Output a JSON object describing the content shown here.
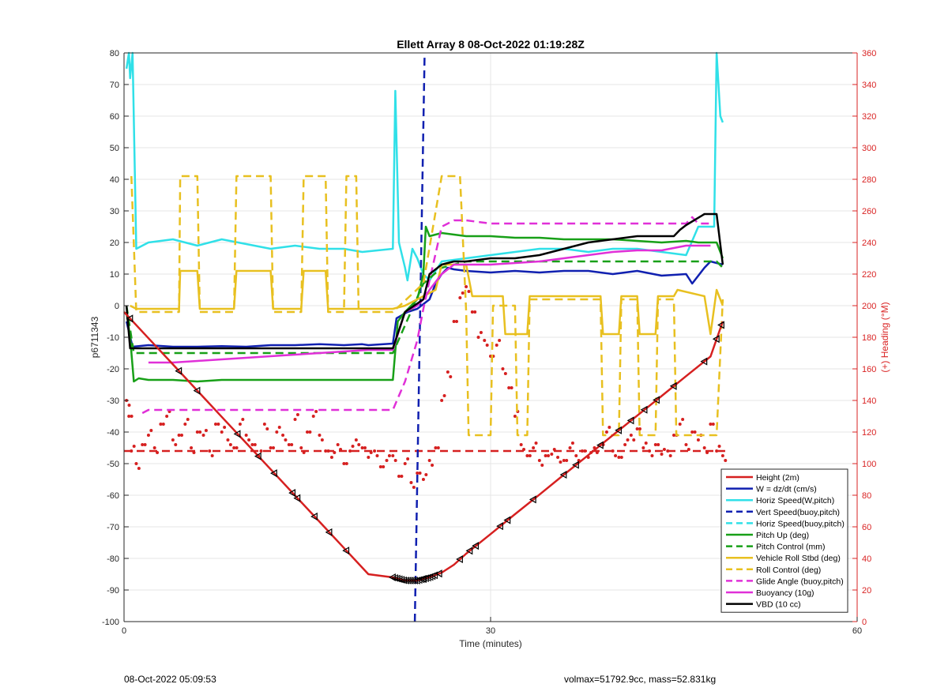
{
  "footer": {
    "left": "08-Oct-2022 05:09:53",
    "right": "volmax=51792.9cc, mass=52.831kg"
  },
  "chart_data": {
    "type": "line",
    "title": "Ellett Array 8 08-Oct-2022 01:19:28Z",
    "xlabel": "Time (minutes)",
    "ylabel": "p6711343",
    "y2label": "(+) Heading (°M)",
    "xlim": [
      0,
      60
    ],
    "ylim": [
      -100,
      80
    ],
    "y2lim": [
      0,
      360
    ],
    "xticks": [
      0,
      30,
      60
    ],
    "yticks": [
      -100,
      -90,
      -80,
      -70,
      -60,
      -50,
      -40,
      -30,
      -20,
      -10,
      0,
      10,
      20,
      30,
      40,
      50,
      60,
      70,
      80
    ],
    "y2ticks": [
      0,
      20,
      40,
      60,
      80,
      100,
      120,
      140,
      160,
      180,
      200,
      220,
      240,
      260,
      280,
      300,
      320,
      340,
      360
    ],
    "grid": true,
    "legend_position": "bottom-right",
    "colors": {
      "red": "#d62020",
      "blue": "#1020b0",
      "cyan": "#30e0e8",
      "green": "#18a018",
      "yellow": "#e8c020",
      "magenta": "#e030d8",
      "black": "#000000",
      "heading": "#d62020"
    },
    "series": [
      {
        "name": "Height (2m)",
        "color": "red",
        "dash": "solid",
        "axis": "left",
        "x": [
          0,
          2,
          4,
          6,
          8,
          10,
          12,
          14,
          16,
          18,
          20,
          22,
          23,
          24,
          25,
          26,
          27,
          28,
          30,
          32,
          34,
          36,
          38,
          40,
          42,
          44,
          46,
          48,
          49
        ],
        "y": [
          -2,
          -10.3,
          -18.6,
          -26.9,
          -35.2,
          -43.5,
          -51.8,
          -60.1,
          -68.4,
          -76.7,
          -85,
          -86,
          -87,
          -87,
          -86,
          -84.5,
          -82,
          -78.5,
          -72.3,
          -66,
          -59.8,
          -53.5,
          -47.3,
          -41,
          -34.8,
          -28.6,
          -22.3,
          -16.1,
          -5
        ],
        "markers_at": [
          0.5,
          4.5,
          6,
          9.3,
          11,
          12.3,
          13.8,
          14.2,
          15.6,
          16.8,
          18.2,
          22,
          24.5,
          25.8,
          27.5,
          28.3,
          28.8,
          30.8,
          31.4,
          33.5,
          36,
          37,
          39,
          40.5,
          41.5,
          42.6,
          43.6,
          45,
          47.5,
          48.5,
          48.9
        ]
      },
      {
        "name": "W = dz/dt (cm/s)",
        "color": "blue",
        "dash": "solid",
        "axis": "left",
        "x": [
          0.2,
          0.7,
          2,
          4,
          6,
          8,
          10,
          12,
          14,
          16,
          18,
          19.5,
          20,
          22,
          22.3,
          23.2,
          24,
          25,
          25.5,
          26,
          26.5,
          27,
          28,
          30,
          32,
          34,
          36,
          38,
          40,
          42,
          44,
          46,
          46.5,
          47.5,
          48,
          49
        ],
        "y": [
          -5,
          -13,
          -12.5,
          -13,
          -13,
          -12.8,
          -13,
          -12.5,
          -12.5,
          -12.2,
          -12.5,
          -12.2,
          -12.5,
          -12,
          -4,
          -2,
          -1,
          2,
          7,
          10,
          12,
          11.5,
          11,
          10.5,
          11,
          10.5,
          11,
          11,
          10,
          11,
          9.5,
          10,
          7,
          12,
          14,
          13
        ]
      },
      {
        "name": "Horiz Speed(W,pitch)",
        "color": "cyan",
        "dash": "solid",
        "axis": "left",
        "x": [
          0.2,
          0.4,
          0.5,
          0.7,
          1,
          2,
          4,
          6,
          8,
          10,
          12,
          14,
          16,
          18,
          19.5,
          22,
          22.2,
          22.5,
          23,
          23.2,
          23.6,
          24,
          24.5,
          25,
          26,
          28,
          30,
          32,
          34,
          36,
          38,
          40,
          42,
          44,
          46,
          47,
          48.3,
          48.5,
          48.8,
          49
        ],
        "y": [
          75,
          80,
          72,
          80,
          18,
          20,
          21,
          19,
          21,
          19.5,
          18,
          19,
          18,
          18,
          17,
          18,
          68,
          20,
          12,
          8,
          18,
          15,
          10,
          8,
          14,
          15,
          16,
          17,
          18,
          18,
          17,
          18,
          18,
          17,
          16,
          25,
          25,
          80,
          60,
          58
        ]
      },
      {
        "name": "Vert Speed(buoy,pitch)",
        "color": "blue",
        "dash": "dash",
        "axis": "left",
        "x": [
          23.8,
          24.6
        ],
        "y": [
          -100,
          80
        ]
      },
      {
        "name": "Horiz Speed(buoy,pitch)",
        "color": "cyan",
        "dash": "dash",
        "axis": "left",
        "x": [],
        "y": []
      },
      {
        "name": "Pitch Up (deg)",
        "color": "green",
        "dash": "solid",
        "axis": "left",
        "x": [
          0.2,
          0.5,
          0.8,
          1.2,
          2,
          4,
          6,
          8,
          10,
          12,
          14,
          16,
          18,
          19.5,
          22,
          22.4,
          23,
          24,
          24.5,
          24.7,
          25,
          26,
          28,
          30,
          32,
          34,
          36,
          38,
          40,
          42,
          44,
          46,
          47,
          48.5,
          49
        ],
        "y": [
          -2,
          -10,
          -24,
          -23,
          -23.5,
          -23.5,
          -24,
          -23.5,
          -23.5,
          -23.5,
          -23.5,
          -23.5,
          -23.5,
          -23.5,
          -23.5,
          -5,
          -2,
          2,
          10,
          25,
          22,
          23,
          22,
          22,
          21.5,
          21.5,
          21,
          21,
          21,
          20.5,
          20,
          20.5,
          20,
          20,
          15
        ]
      },
      {
        "name": "Pitch Control (mm)",
        "color": "green",
        "dash": "dash",
        "axis": "left",
        "x": [
          0.2,
          0.8,
          2,
          22,
          24.5,
          26,
          28,
          30,
          48.5,
          49
        ],
        "y": [
          0,
          -15,
          -15,
          -15,
          7,
          12,
          14,
          14,
          14,
          12
        ]
      },
      {
        "name": "Vehicle Roll Stbd (deg)",
        "color": "yellow",
        "dash": "solid",
        "axis": "left",
        "x": [
          0.5,
          1,
          4.5,
          4.6,
          6,
          6.2,
          9,
          9.2,
          12,
          12.2,
          14.5,
          14.7,
          16.5,
          16.7,
          20,
          22,
          23,
          24.5,
          25.5,
          26,
          27,
          28,
          28.5,
          31,
          31.2,
          33,
          33.2,
          39,
          39.2,
          40.5,
          40.7,
          42,
          42.2,
          43.5,
          43.7,
          45,
          45.3,
          47.5,
          48,
          48.5,
          49
        ],
        "y": [
          0,
          -1,
          -1,
          11,
          11,
          -1,
          -1,
          11,
          11,
          -1,
          -1,
          11,
          11,
          -1,
          -1,
          -1,
          0,
          3,
          5,
          13,
          13,
          13,
          3,
          3,
          -9,
          -9,
          3,
          3,
          -9,
          -9,
          3,
          3,
          -9,
          -9,
          3,
          3,
          5,
          3,
          -9,
          5,
          0
        ]
      },
      {
        "name": "Roll Control (deg)",
        "color": "yellow",
        "dash": "dash",
        "axis": "left",
        "x": [
          0.6,
          1,
          4.5,
          4.6,
          6,
          6.2,
          9,
          9.2,
          12,
          12.2,
          14.5,
          14.7,
          16.5,
          16.7,
          18,
          18.2,
          19,
          19.2,
          22,
          24.5,
          26,
          27.5,
          28,
          28.2,
          30,
          30.2,
          32,
          32.2,
          33,
          33.2,
          39,
          39.2,
          40.5,
          40.7,
          42,
          42.2,
          43.5,
          43.7,
          45,
          45.2,
          48.5,
          49
        ],
        "y": [
          41,
          -2,
          -2,
          41,
          41,
          -2,
          -2,
          41,
          41,
          -2,
          -2,
          41,
          41,
          -2,
          -2,
          41,
          41,
          -2,
          -2,
          7,
          41,
          41,
          -2,
          -41,
          -41,
          0,
          0,
          -41,
          -41,
          2,
          2,
          -41,
          -41,
          2,
          2,
          -41,
          -41,
          2,
          2,
          -41,
          -41,
          2
        ]
      },
      {
        "name": "Glide Angle (buoy,pitch)",
        "color": "magenta",
        "dash": "dash",
        "axis": "left",
        "x": [
          1.5,
          2,
          4,
          6,
          8,
          10,
          12,
          14,
          16,
          18,
          20,
          22,
          23,
          24,
          24.5,
          25,
          26,
          27,
          28,
          30,
          32,
          34,
          36,
          38,
          40,
          42,
          44,
          46,
          46.5,
          47,
          48
        ],
        "y": [
          -34,
          -33,
          -33,
          -33,
          -33,
          -33,
          -33,
          -33,
          -33,
          -33,
          -33,
          -33,
          -24,
          -11,
          -1,
          8,
          25,
          27,
          27,
          26,
          26,
          26,
          26,
          26,
          26,
          26,
          26,
          26,
          28,
          26,
          26
        ]
      },
      {
        "name": "Buoyancy (10g)",
        "color": "magenta",
        "dash": "solid",
        "axis": "left",
        "x": [
          2,
          4,
          6,
          8,
          10,
          12,
          14,
          16,
          18,
          20,
          22,
          23,
          24,
          24.5,
          25,
          26,
          27,
          30,
          34,
          36,
          38,
          40,
          42,
          44,
          46,
          47,
          48
        ],
        "y": [
          -18,
          -18,
          -17.5,
          -17,
          -16.5,
          -16,
          -15.5,
          -15,
          -14.5,
          -14,
          -14,
          -2,
          0,
          2,
          5,
          10,
          13,
          13,
          14,
          15,
          16,
          17,
          17.5,
          17.5,
          19,
          19,
          19
        ]
      },
      {
        "name": "VBD (10 cc)",
        "color": "black",
        "dash": "solid",
        "axis": "left",
        "x": [
          0.2,
          0.5,
          2,
          4,
          6,
          8,
          10,
          12,
          14,
          16,
          18,
          20,
          22,
          23,
          24.5,
          25,
          26,
          27,
          28,
          30,
          32,
          34,
          36,
          38,
          40,
          42,
          44,
          45,
          45.5,
          46,
          47.5,
          48.5,
          49
        ],
        "y": [
          0,
          -13.5,
          -13.5,
          -13.5,
          -13.5,
          -13.5,
          -13.5,
          -13.5,
          -13.5,
          -13.5,
          -13.5,
          -13.5,
          -13.5,
          -2,
          2,
          10,
          13,
          14,
          14,
          15,
          15,
          16,
          18,
          20,
          21,
          22,
          22,
          22,
          24,
          25.5,
          29,
          29,
          13
        ]
      }
    ],
    "heading_scatter": {
      "name": "Heading",
      "axis": "right",
      "x": [
        0.2,
        0.4,
        0.6,
        1,
        1.5,
        2,
        2.5,
        3,
        3.5,
        4,
        4.5,
        5,
        5.5,
        6,
        6.5,
        7,
        7.5,
        8,
        8.5,
        9,
        9.5,
        10,
        10.5,
        11,
        11.5,
        12,
        12.5,
        13,
        13.5,
        14,
        14.5,
        15,
        15.5,
        16,
        16.5,
        17,
        17.5,
        18,
        18.5,
        19,
        19.5,
        20,
        20.5,
        21,
        21.5,
        22,
        22.5,
        23,
        23.5,
        24,
        24.5,
        25,
        25.5,
        26,
        26.5,
        27,
        27.5,
        28,
        28.5,
        29,
        29.5,
        30,
        30.5,
        31,
        31.5,
        32,
        32.5,
        33,
        33.5,
        34,
        34.5,
        35,
        35.5,
        36,
        36.5,
        37,
        37.5,
        38,
        38.5,
        39,
        39.5,
        40,
        40.5,
        41,
        41.5,
        42,
        42.5,
        43,
        43.5,
        44,
        44.5,
        45,
        45.5,
        46,
        46.5,
        47,
        47.5,
        48,
        48.5,
        49
      ],
      "y": [
        140,
        130,
        108,
        100,
        112,
        118,
        110,
        125,
        130,
        115,
        118,
        125,
        110,
        120,
        118,
        108,
        125,
        120,
        115,
        110,
        125,
        118,
        112,
        105,
        125,
        110,
        120,
        118,
        112,
        128,
        110,
        120,
        130,
        118,
        108,
        104,
        112,
        100,
        108,
        115,
        110,
        104,
        108,
        98,
        102,
        105,
        92,
        100,
        88,
        94,
        90,
        102,
        110,
        140,
        158,
        190,
        205,
        212,
        196,
        180,
        178,
        168,
        175,
        160,
        148,
        130,
        112,
        105,
        110,
        102,
        105,
        106,
        104,
        102,
        110,
        105,
        108,
        104,
        110,
        112,
        120,
        108,
        104,
        112,
        118,
        122,
        110,
        108,
        112,
        106,
        108,
        118,
        125,
        112,
        120,
        115,
        110,
        125,
        108,
        105
      ]
    },
    "heading_reference": {
      "axis": "right",
      "y": 108,
      "color": "#d62020",
      "dash": "dash"
    }
  }
}
